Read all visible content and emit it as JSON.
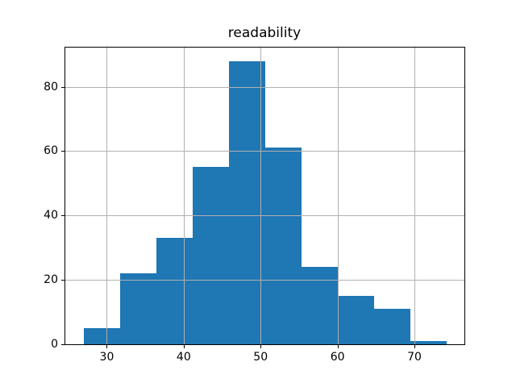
{
  "figure": {
    "background": "#ffffff"
  },
  "chart_data": {
    "type": "histogram",
    "title": "readability",
    "xlabel": "",
    "ylabel": "",
    "bin_edges": [
      27.0,
      31.7,
      36.4,
      41.2,
      45.9,
      50.6,
      55.3,
      60.0,
      64.8,
      69.5,
      74.2
    ],
    "counts": [
      5,
      22,
      33,
      55,
      88,
      61,
      24,
      15,
      11,
      1
    ],
    "x_ticks": [
      30,
      40,
      50,
      60,
      70
    ],
    "y_ticks": [
      0,
      20,
      40,
      60,
      80
    ],
    "xlim": [
      24.5,
      76.5
    ],
    "ylim": [
      0,
      92.4
    ],
    "grid": true,
    "grid_above_bars": true,
    "bar_color": "#1f77b4",
    "grid_color": "#b0b0b0",
    "spine_color": "#000000",
    "text_color": "#000000"
  }
}
